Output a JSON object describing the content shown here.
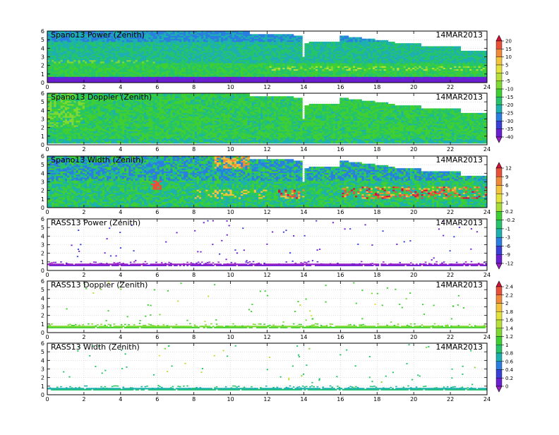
{
  "date_label": "14MAR2013",
  "chart_data": [
    {
      "type": "heatmap",
      "title": "Spano13 Power (Zenith)",
      "date": "14MAR2013",
      "xlim": [
        0,
        24
      ],
      "ylim": [
        0,
        6
      ],
      "xticks": [
        0,
        2,
        4,
        6,
        8,
        10,
        12,
        14,
        16,
        18,
        20,
        22,
        24
      ],
      "yticks": [
        0,
        1,
        2,
        3,
        4,
        5,
        6
      ],
      "colorbar": "cb1",
      "field": "spano_power"
    },
    {
      "type": "heatmap",
      "title": "Spano13 Doppler (Zenith)",
      "date": "14MAR2013",
      "xlim": [
        0,
        24
      ],
      "ylim": [
        0,
        6
      ],
      "xticks": [
        0,
        2,
        4,
        6,
        8,
        10,
        12,
        14,
        16,
        18,
        20,
        22,
        24
      ],
      "yticks": [
        0,
        1,
        2,
        3,
        4,
        5,
        6
      ],
      "colorbar": "cb1",
      "field": "spano_doppler"
    },
    {
      "type": "heatmap",
      "title": "Spano13 Width (Zenith)",
      "date": "14MAR2013",
      "xlim": [
        0,
        24
      ],
      "ylim": [
        0,
        6
      ],
      "xticks": [
        0,
        2,
        4,
        6,
        8,
        10,
        12,
        14,
        16,
        18,
        20,
        22,
        24
      ],
      "yticks": [
        0,
        1,
        2,
        3,
        4,
        5,
        6
      ],
      "colorbar": "cb2",
      "field": "spano_width"
    },
    {
      "type": "heatmap",
      "title": "RASS13 Power (Zenith)",
      "date": "14MAR2013",
      "xlim": [
        0,
        24
      ],
      "ylim": [
        0,
        6
      ],
      "xticks": [
        0,
        2,
        4,
        6,
        8,
        10,
        12,
        14,
        16,
        18,
        20,
        22,
        24
      ],
      "yticks": [
        0,
        1,
        2,
        3,
        4,
        5,
        6
      ],
      "colorbar": "cb2",
      "field": "rass_power"
    },
    {
      "type": "heatmap",
      "title": "RASS13 Doppler (Zenith)",
      "date": "14MAR2013",
      "xlim": [
        0,
        24
      ],
      "ylim": [
        0,
        6
      ],
      "xticks": [
        0,
        2,
        4,
        6,
        8,
        10,
        12,
        14,
        16,
        18,
        20,
        22,
        24
      ],
      "yticks": [
        0,
        1,
        2,
        3,
        4,
        5,
        6
      ],
      "colorbar": "cb3",
      "field": "rass_doppler"
    },
    {
      "type": "heatmap",
      "title": "RASS13 Width (Zenith)",
      "date": "14MAR2013",
      "xlim": [
        0,
        24
      ],
      "ylim": [
        0,
        6
      ],
      "xticks": [
        0,
        2,
        4,
        6,
        8,
        10,
        12,
        14,
        16,
        18,
        20,
        22,
        24
      ],
      "yticks": [
        0,
        1,
        2,
        3,
        4,
        5,
        6
      ],
      "colorbar": "cb3",
      "field": "rass_width"
    }
  ],
  "colorbars": {
    "cb1": {
      "labels": [
        "20",
        "15",
        "10",
        "5",
        "0",
        "-5",
        "-10",
        "-15",
        "-20",
        "-25",
        "-30",
        "-35",
        "-40"
      ],
      "colors": [
        "#d8103a",
        "#e8503a",
        "#f08a3a",
        "#f3c33b",
        "#e3e23a",
        "#b7df39",
        "#7fd933",
        "#3fcf33",
        "#25c46a",
        "#1db0b0",
        "#2a7ee0",
        "#3a3fd8",
        "#6a1fd0",
        "#9a20c8"
      ]
    },
    "cb2": {
      "labels": [
        "12",
        "9",
        "6",
        "3",
        "1",
        "0.2",
        "-0.2",
        "-1",
        "-3",
        "-6",
        "-9",
        "-12"
      ],
      "colors": [
        "#d8103a",
        "#e8503a",
        "#f08a3a",
        "#f3c33b",
        "#e3e23a",
        "#a8dc36",
        "#3fcf33",
        "#25c46a",
        "#1db0b0",
        "#2a7ee0",
        "#3a3fd8",
        "#6a1fd0",
        "#9a20c8"
      ]
    },
    "cb3": {
      "labels": [
        "2.4",
        "2.2",
        "2",
        "1.8",
        "1.6",
        "1.4",
        "1.2",
        "1",
        "0.8",
        "0.6",
        "0.4",
        "0.2",
        "0"
      ],
      "colors": [
        "#d8103a",
        "#e8503a",
        "#f08a3a",
        "#f3c33b",
        "#e3e23a",
        "#b7df39",
        "#7fd933",
        "#3fcf33",
        "#25c46a",
        "#1db0b0",
        "#2a7ee0",
        "#3a3fd8",
        "#6a1fd0",
        "#9a20c8"
      ]
    }
  }
}
